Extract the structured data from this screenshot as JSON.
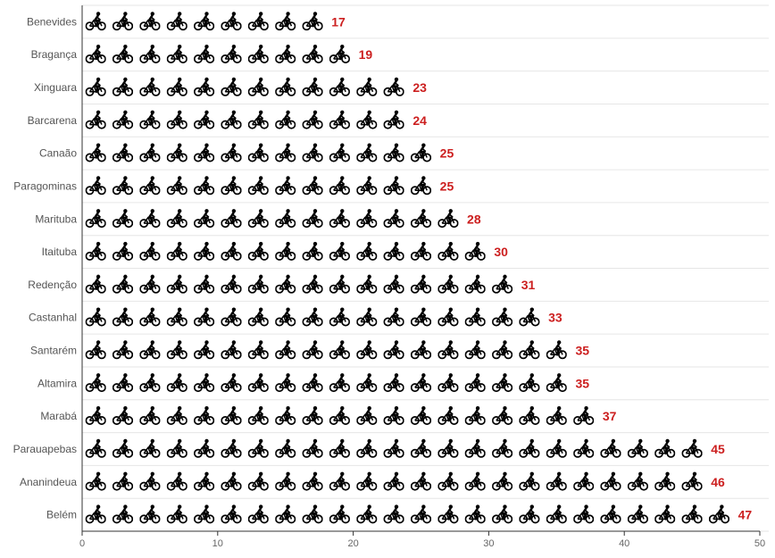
{
  "chart_data": {
    "type": "bar",
    "subtype": "pictogram",
    "icon": "bicycle-icon",
    "categories": [
      "Benevides",
      "Bragança",
      "Xinguara",
      "Barcarena",
      "Canaão",
      "Paragominas",
      "Marituba",
      "Itaituba",
      "Redenção",
      "Castanhal",
      "Santarém",
      "Altamira",
      "Marabá",
      "Parauapebas",
      "Ananindeua",
      "Belém"
    ],
    "values": [
      17,
      19,
      23,
      24,
      25,
      25,
      28,
      30,
      31,
      33,
      35,
      35,
      37,
      45,
      46,
      47
    ],
    "xlim": [
      0,
      50
    ],
    "xticks": [
      0,
      10,
      20,
      30,
      40,
      50
    ],
    "orientation": "horizontal",
    "grid": true,
    "icon_color": "#000000",
    "value_label_color": "#cc1f1f",
    "grid_color": "#e6e6e6",
    "axis_color": "#333333"
  }
}
